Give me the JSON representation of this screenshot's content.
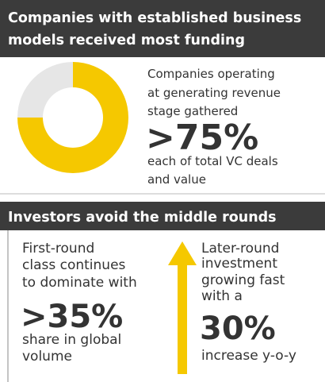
{
  "section1": {
    "title": [
      "Companies with established business",
      "models received most funding"
    ],
    "text": [
      "Companies operating",
      "at generating revenue",
      "stage gathered"
    ],
    "stat": ">75%",
    "caption": [
      "each of total VC deals",
      "and value"
    ]
  },
  "donut": {
    "values": [
      75,
      25
    ],
    "colors": [
      "#f5c800",
      "#e6e6e6"
    ]
  },
  "section2": {
    "title": "Investors avoid the middle rounds",
    "left": {
      "text": [
        "First-round",
        "class continues",
        "to dominate with"
      ],
      "stat": ">35%",
      "caption": [
        "share in global",
        "volume"
      ]
    },
    "right": {
      "text": [
        "Later-round",
        "investment",
        "growing fast",
        "with a"
      ],
      "stat": "30%",
      "caption": "increase y-o-y"
    }
  }
}
